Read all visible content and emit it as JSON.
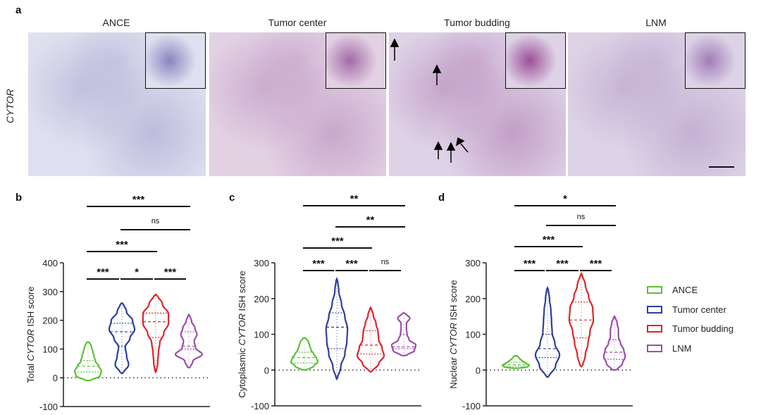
{
  "panel_a": {
    "label": "a",
    "row_label": "CYTOR",
    "images": [
      {
        "title": "ANCE",
        "base": "#dfe0ef",
        "stain": "#8c84c0"
      },
      {
        "title": "Tumor center",
        "base": "#e2d0e3",
        "stain": "#a26ba8"
      },
      {
        "title": "Tumor budding",
        "base": "#ddd2e6",
        "stain": "#9c4f98"
      },
      {
        "title": "LNM",
        "base": "#ddd3e6",
        "stain": "#a07cb8"
      }
    ]
  },
  "legend": [
    {
      "name": "ANCE",
      "color": "#5cbf3a"
    },
    {
      "name": "Tumor center",
      "color": "#2e3f9a"
    },
    {
      "name": "Tumor budding",
      "color": "#e0242a"
    },
    {
      "name": "LNM",
      "color": "#9a4ea6"
    }
  ],
  "chart_data": [
    {
      "panel": "b",
      "type": "violin",
      "ylabel_pre": "Total ",
      "ylabel_italic": "CYTOR",
      "ylabel_post": " ISH score",
      "ylim": [
        -100,
        400
      ],
      "yticks": [
        "400",
        "300",
        "200",
        "100",
        "0",
        "-100"
      ],
      "ytick_values": [
        400,
        300,
        200,
        100,
        0,
        -100
      ],
      "groups": [
        {
          "name": "ANCE",
          "min": -10,
          "max": 125,
          "q1": 20,
          "median": 40,
          "q3": 60,
          "density": [
            0.2,
            0.9,
            1,
            0.8,
            0.55,
            0.45,
            0.35,
            0.25,
            0.1
          ]
        },
        {
          "name": "Tumor center",
          "min": 15,
          "max": 260,
          "q1": 110,
          "median": 160,
          "q3": 190,
          "density": [
            0.1,
            0.5,
            0.35,
            0.25,
            0.6,
            0.95,
            0.8,
            0.35,
            0.1
          ]
        },
        {
          "name": "Tumor budding",
          "min": 20,
          "max": 290,
          "q1": 140,
          "median": 195,
          "q3": 225,
          "density": [
            0.05,
            0.15,
            0.2,
            0.3,
            0.6,
            0.95,
            0.95,
            0.5,
            0.1
          ]
        },
        {
          "name": "LNM",
          "min": 35,
          "max": 220,
          "q1": 100,
          "median": 110,
          "q3": 160,
          "density": [
            0.1,
            0.3,
            1,
            0.5,
            0.4,
            0.6,
            0.45,
            0.2,
            0.05
          ]
        }
      ],
      "significance": [
        {
          "from": 0,
          "to": 1,
          "label": "***"
        },
        {
          "from": 1,
          "to": 2,
          "label": "*"
        },
        {
          "from": 2,
          "to": 3,
          "label": "***"
        },
        {
          "from": 0,
          "to": 2,
          "label": "***"
        },
        {
          "from": 1,
          "to": 3,
          "label": "ns"
        },
        {
          "from": 0,
          "to": 3,
          "label": "***"
        }
      ]
    },
    {
      "panel": "c",
      "type": "violin",
      "ylabel_pre": "Cytoplasmic ",
      "ylabel_italic": "CYTOR",
      "ylabel_post": " ISH score",
      "ylim": [
        -100,
        300
      ],
      "yticks": [
        "300",
        "200",
        "100",
        "0",
        "-100"
      ],
      "ytick_values": [
        300,
        200,
        100,
        0,
        -100
      ],
      "groups": [
        {
          "name": "ANCE",
          "min": 0,
          "max": 90,
          "q1": 20,
          "median": 35,
          "q3": 50,
          "density": [
            0.2,
            0.7,
            1,
            0.9,
            0.7,
            0.5,
            0.4,
            0.3,
            0.1
          ]
        },
        {
          "name": "Tumor center",
          "min": -25,
          "max": 255,
          "q1": 60,
          "median": 120,
          "q3": 160,
          "density": [
            0.05,
            0.3,
            0.6,
            0.75,
            0.8,
            0.6,
            0.35,
            0.15,
            0.05
          ]
        },
        {
          "name": "Tumor budding",
          "min": -5,
          "max": 175,
          "q1": 45,
          "median": 70,
          "q3": 110,
          "density": [
            0.1,
            0.6,
            1,
            0.85,
            0.6,
            0.55,
            0.4,
            0.2,
            0.05
          ]
        },
        {
          "name": "LNM",
          "min": 40,
          "max": 160,
          "q1": 60,
          "median": 65,
          "q3": 100,
          "density": [
            0.2,
            0.8,
            0.9,
            0.4,
            0.25,
            0.2,
            0.2,
            0.45,
            0.1
          ]
        }
      ],
      "significance": [
        {
          "from": 0,
          "to": 1,
          "label": "***"
        },
        {
          "from": 1,
          "to": 2,
          "label": "***"
        },
        {
          "from": 2,
          "to": 3,
          "label": "ns"
        },
        {
          "from": 0,
          "to": 2,
          "label": "***"
        },
        {
          "from": 1,
          "to": 3,
          "label": "**"
        },
        {
          "from": 0,
          "to": 3,
          "label": "**"
        }
      ]
    },
    {
      "panel": "d",
      "type": "violin",
      "ylabel_pre": "Nuclear ",
      "ylabel_italic": "CYTOR",
      "ylabel_post": " ISH score",
      "ylim": [
        -100,
        300
      ],
      "yticks": [
        "300",
        "200",
        "100",
        "0",
        "-100"
      ],
      "ytick_values": [
        300,
        200,
        100,
        0,
        -100
      ],
      "groups": [
        {
          "name": "ANCE",
          "min": 5,
          "max": 40,
          "q1": 10,
          "median": 15,
          "q3": 22,
          "density": [
            0.3,
            0.9,
            1,
            0.8,
            0.6,
            0.45,
            0.3,
            0.2,
            0.1
          ]
        },
        {
          "name": "Tumor center",
          "min": -20,
          "max": 230,
          "q1": 35,
          "median": 60,
          "q3": 100,
          "density": [
            0.1,
            0.6,
            0.9,
            0.55,
            0.35,
            0.3,
            0.25,
            0.15,
            0.05
          ]
        },
        {
          "name": "Tumor budding",
          "min": 10,
          "max": 270,
          "q1": 90,
          "median": 140,
          "q3": 190,
          "density": [
            0.1,
            0.3,
            0.5,
            0.65,
            0.9,
            0.85,
            0.55,
            0.3,
            0.05
          ]
        },
        {
          "name": "LNM",
          "min": 0,
          "max": 150,
          "q1": 30,
          "median": 50,
          "q3": 85,
          "density": [
            0.2,
            0.6,
            0.8,
            0.7,
            0.45,
            0.3,
            0.3,
            0.2,
            0.05
          ]
        }
      ],
      "significance": [
        {
          "from": 0,
          "to": 1,
          "label": "***"
        },
        {
          "from": 1,
          "to": 2,
          "label": "***"
        },
        {
          "from": 2,
          "to": 3,
          "label": "***"
        },
        {
          "from": 0,
          "to": 2,
          "label": "***"
        },
        {
          "from": 1,
          "to": 3,
          "label": "ns"
        },
        {
          "from": 0,
          "to": 3,
          "label": "*"
        }
      ]
    }
  ]
}
